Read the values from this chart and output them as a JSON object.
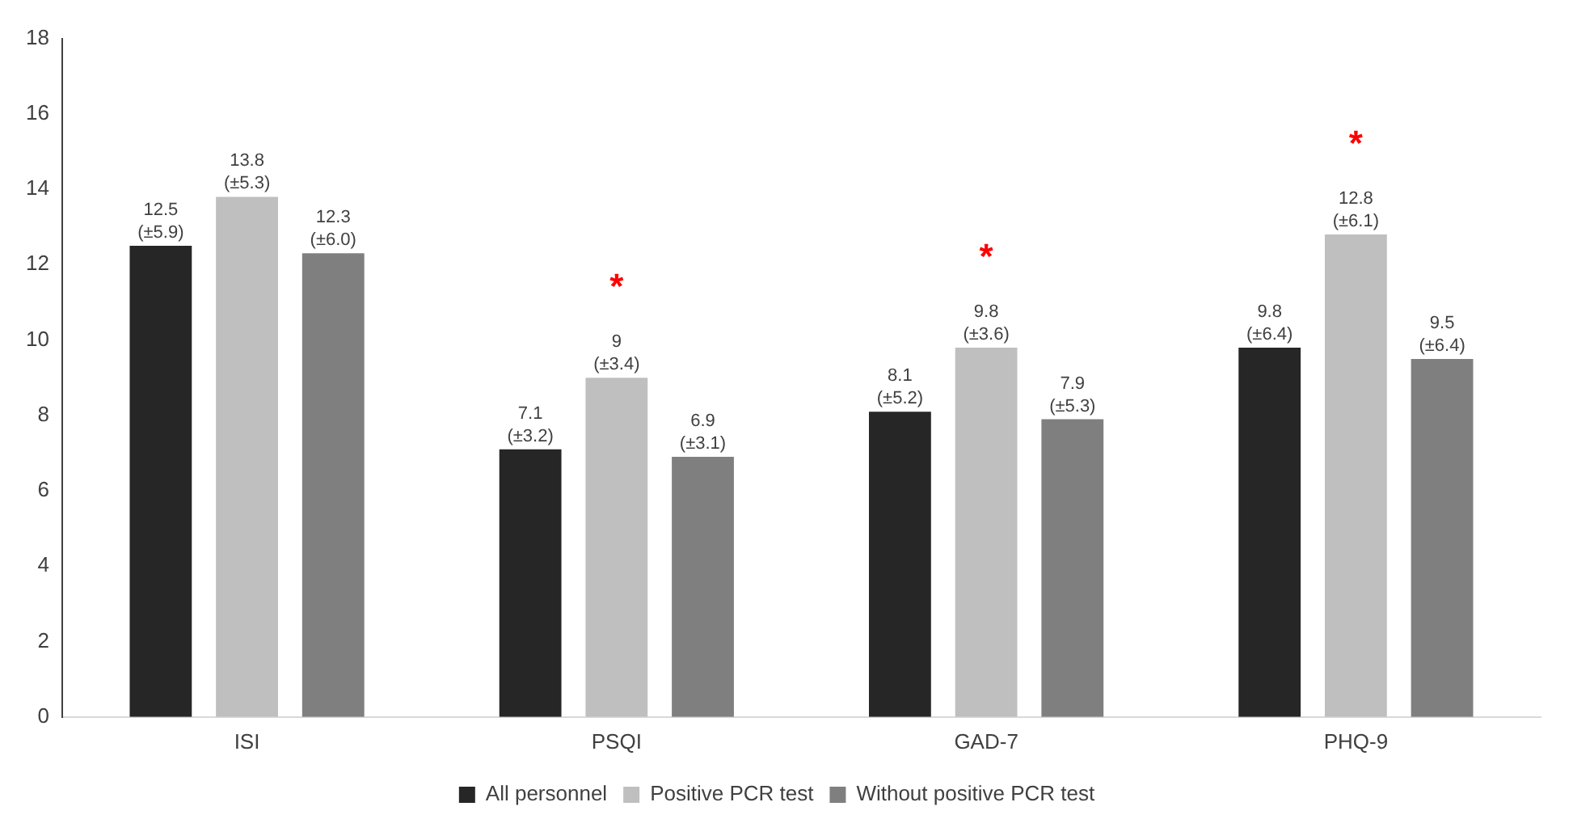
{
  "chart_data": {
    "type": "bar",
    "categories": [
      "ISI",
      "PSQI",
      "GAD-7",
      "PHQ-9"
    ],
    "series": [
      {
        "name": "All personnel",
        "color": "#262626",
        "values": [
          12.5,
          7.1,
          8.1,
          9.8
        ],
        "value_labels": [
          "12.5 (±5.9)",
          "7.1 (±3.2)",
          "8.1 (±5.2)",
          "9.8 (±6.4)"
        ]
      },
      {
        "name": "Positive PCR test",
        "color": "#bfbfbf",
        "values": [
          13.8,
          9,
          9.8,
          12.8
        ],
        "value_labels": [
          "13.8 (±5.3)",
          "9 (±3.4)",
          "9.8 (±3.6)",
          "12.8 (±6.1)"
        ]
      },
      {
        "name": "Without positive PCR test",
        "color": "#7f7f7f",
        "values": [
          12.3,
          6.9,
          7.9,
          9.5
        ],
        "value_labels": [
          "12.3 (±6.0)",
          "6.9 (±3.1)",
          "7.9 (±5.3)",
          "9.5 (±6.4)"
        ]
      }
    ],
    "annotations": [
      "*",
      "*",
      "*"
    ],
    "ylim": [
      0,
      18
    ],
    "yticks": [
      0,
      2,
      4,
      6,
      8,
      10,
      12,
      14,
      16,
      18
    ],
    "grid": false,
    "legend": "bottom"
  }
}
